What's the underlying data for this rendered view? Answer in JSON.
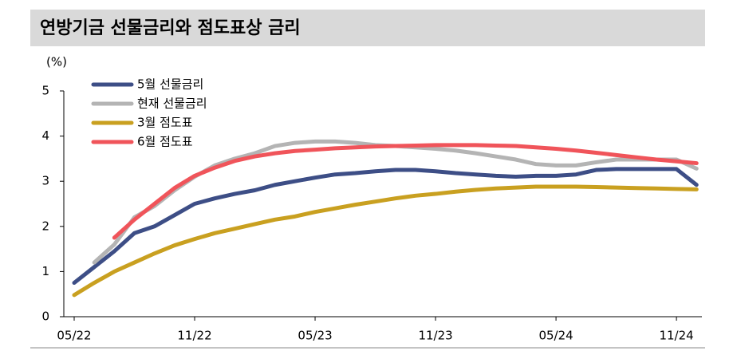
{
  "chart_data": {
    "type": "line",
    "title": "연방기금 선물금리와 점도표상 금리",
    "ylabel": "(%)",
    "categories": [
      "05/22",
      null,
      null,
      null,
      null,
      null,
      "11/22",
      null,
      null,
      null,
      null,
      null,
      "05/23",
      null,
      null,
      null,
      null,
      null,
      "11/23",
      null,
      null,
      null,
      null,
      null,
      "05/24",
      null,
      null,
      null,
      null,
      null,
      "11/24",
      null
    ],
    "series": [
      {
        "name": "5월 선물금리",
        "color": "#3d4e86",
        "values": [
          0.75,
          1.1,
          1.45,
          1.85,
          2.0,
          2.25,
          2.5,
          2.62,
          2.72,
          2.8,
          2.92,
          3.0,
          3.08,
          3.15,
          3.18,
          3.22,
          3.25,
          3.25,
          3.22,
          3.18,
          3.15,
          3.12,
          3.1,
          3.12,
          3.12,
          3.15,
          3.25,
          3.27,
          3.27,
          3.27,
          3.27,
          2.92
        ]
      },
      {
        "name": "현재 선물금리",
        "color": "#b4b4b4",
        "values": [
          null,
          1.2,
          1.6,
          2.2,
          2.45,
          2.8,
          3.1,
          3.35,
          3.5,
          3.62,
          3.78,
          3.85,
          3.88,
          3.88,
          3.85,
          3.8,
          3.78,
          3.75,
          3.72,
          3.68,
          3.62,
          3.55,
          3.48,
          3.38,
          3.35,
          3.35,
          3.42,
          3.48,
          3.48,
          3.48,
          3.48,
          3.28
        ]
      },
      {
        "name": "3월 점도표",
        "color": "#c9a020",
        "values": [
          0.48,
          0.75,
          1.0,
          1.2,
          1.4,
          1.58,
          1.72,
          1.85,
          1.95,
          2.05,
          2.15,
          2.22,
          2.32,
          2.4,
          2.48,
          2.55,
          2.62,
          2.68,
          2.72,
          2.77,
          2.81,
          2.84,
          2.86,
          2.88,
          2.88,
          2.88,
          2.87,
          2.86,
          2.85,
          2.84,
          2.83,
          2.82
        ]
      },
      {
        "name": "6월 점도표",
        "color": "#f0545a",
        "values": [
          null,
          null,
          1.75,
          2.15,
          2.5,
          2.85,
          3.12,
          3.3,
          3.45,
          3.55,
          3.62,
          3.67,
          3.7,
          3.73,
          3.75,
          3.77,
          3.78,
          3.79,
          3.8,
          3.8,
          3.8,
          3.79,
          3.78,
          3.75,
          3.72,
          3.68,
          3.63,
          3.58,
          3.53,
          3.48,
          3.44,
          3.4
        ]
      }
    ],
    "ylim": [
      0,
      5
    ],
    "yticks": [
      0,
      1,
      2,
      3,
      4,
      5
    ],
    "grid": false,
    "legend": "upper-left"
  }
}
